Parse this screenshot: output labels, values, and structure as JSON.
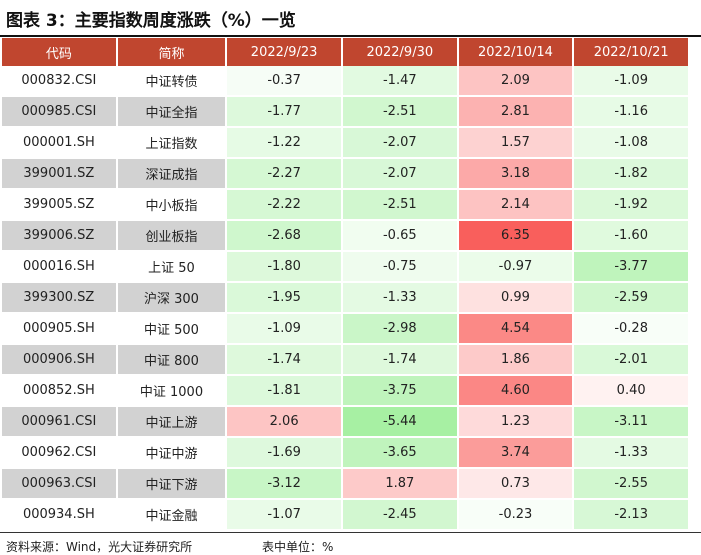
{
  "title": "图表 3：主要指数周度涨跌（%）一览",
  "headers": [
    "代码",
    "简称",
    "2022/9/23",
    "2022/9/30",
    "2022/10/14",
    "2022/10/21"
  ],
  "rows": [
    {
      "code": "000832.CSI",
      "name": "中证转债",
      "values": [
        "-0.37",
        "-1.47",
        "2.09",
        "-1.09"
      ]
    },
    {
      "code": "000985.CSI",
      "name": "中证全指",
      "values": [
        "-1.77",
        "-2.51",
        "2.81",
        "-1.16"
      ]
    },
    {
      "code": "000001.SH",
      "name": "上证指数",
      "values": [
        "-1.22",
        "-2.07",
        "1.57",
        "-1.08"
      ]
    },
    {
      "code": "399001.SZ",
      "name": "深证成指",
      "values": [
        "-2.27",
        "-2.07",
        "3.18",
        "-1.82"
      ]
    },
    {
      "code": "399005.SZ",
      "name": "中小板指",
      "values": [
        "-2.22",
        "-2.51",
        "2.14",
        "-1.92"
      ]
    },
    {
      "code": "399006.SZ",
      "name": "创业板指",
      "values": [
        "-2.68",
        "-0.65",
        "6.35",
        "-1.60"
      ]
    },
    {
      "code": "000016.SH",
      "name": "上证 50",
      "values": [
        "-1.80",
        "-0.75",
        "-0.97",
        "-3.77"
      ]
    },
    {
      "code": "399300.SZ",
      "name": "沪深 300",
      "values": [
        "-1.95",
        "-1.33",
        "0.99",
        "-2.59"
      ]
    },
    {
      "code": "000905.SH",
      "name": "中证 500",
      "values": [
        "-1.09",
        "-2.98",
        "4.54",
        "-0.28"
      ]
    },
    {
      "code": "000906.SH",
      "name": "中证 800",
      "values": [
        "-1.74",
        "-1.74",
        "1.86",
        "-2.01"
      ]
    },
    {
      "code": "000852.SH",
      "name": "中证 1000",
      "values": [
        "-1.81",
        "-3.75",
        "4.60",
        "0.40"
      ]
    },
    {
      "code": "000961.CSI",
      "name": "中证上游",
      "values": [
        "2.06",
        "-5.44",
        "1.23",
        "-3.11"
      ]
    },
    {
      "code": "000962.CSI",
      "name": "中证中游",
      "values": [
        "-1.69",
        "-3.65",
        "3.74",
        "-1.33"
      ]
    },
    {
      "code": "000963.CSI",
      "name": "中证下游",
      "values": [
        "-3.12",
        "1.87",
        "0.73",
        "-2.55"
      ]
    },
    {
      "code": "000934.SH",
      "name": "中证金融",
      "values": [
        "-1.07",
        "-2.45",
        "-0.23",
        "-2.13"
      ]
    }
  ],
  "source": "资料来源：Wind，光大证券研究所",
  "unit": "表中单位：%",
  "colors": {
    "header": "#c0462f",
    "shade": "#d2d2d2",
    "pos_max": "#f95f5c",
    "neg_max": "#a7f0a3"
  }
}
